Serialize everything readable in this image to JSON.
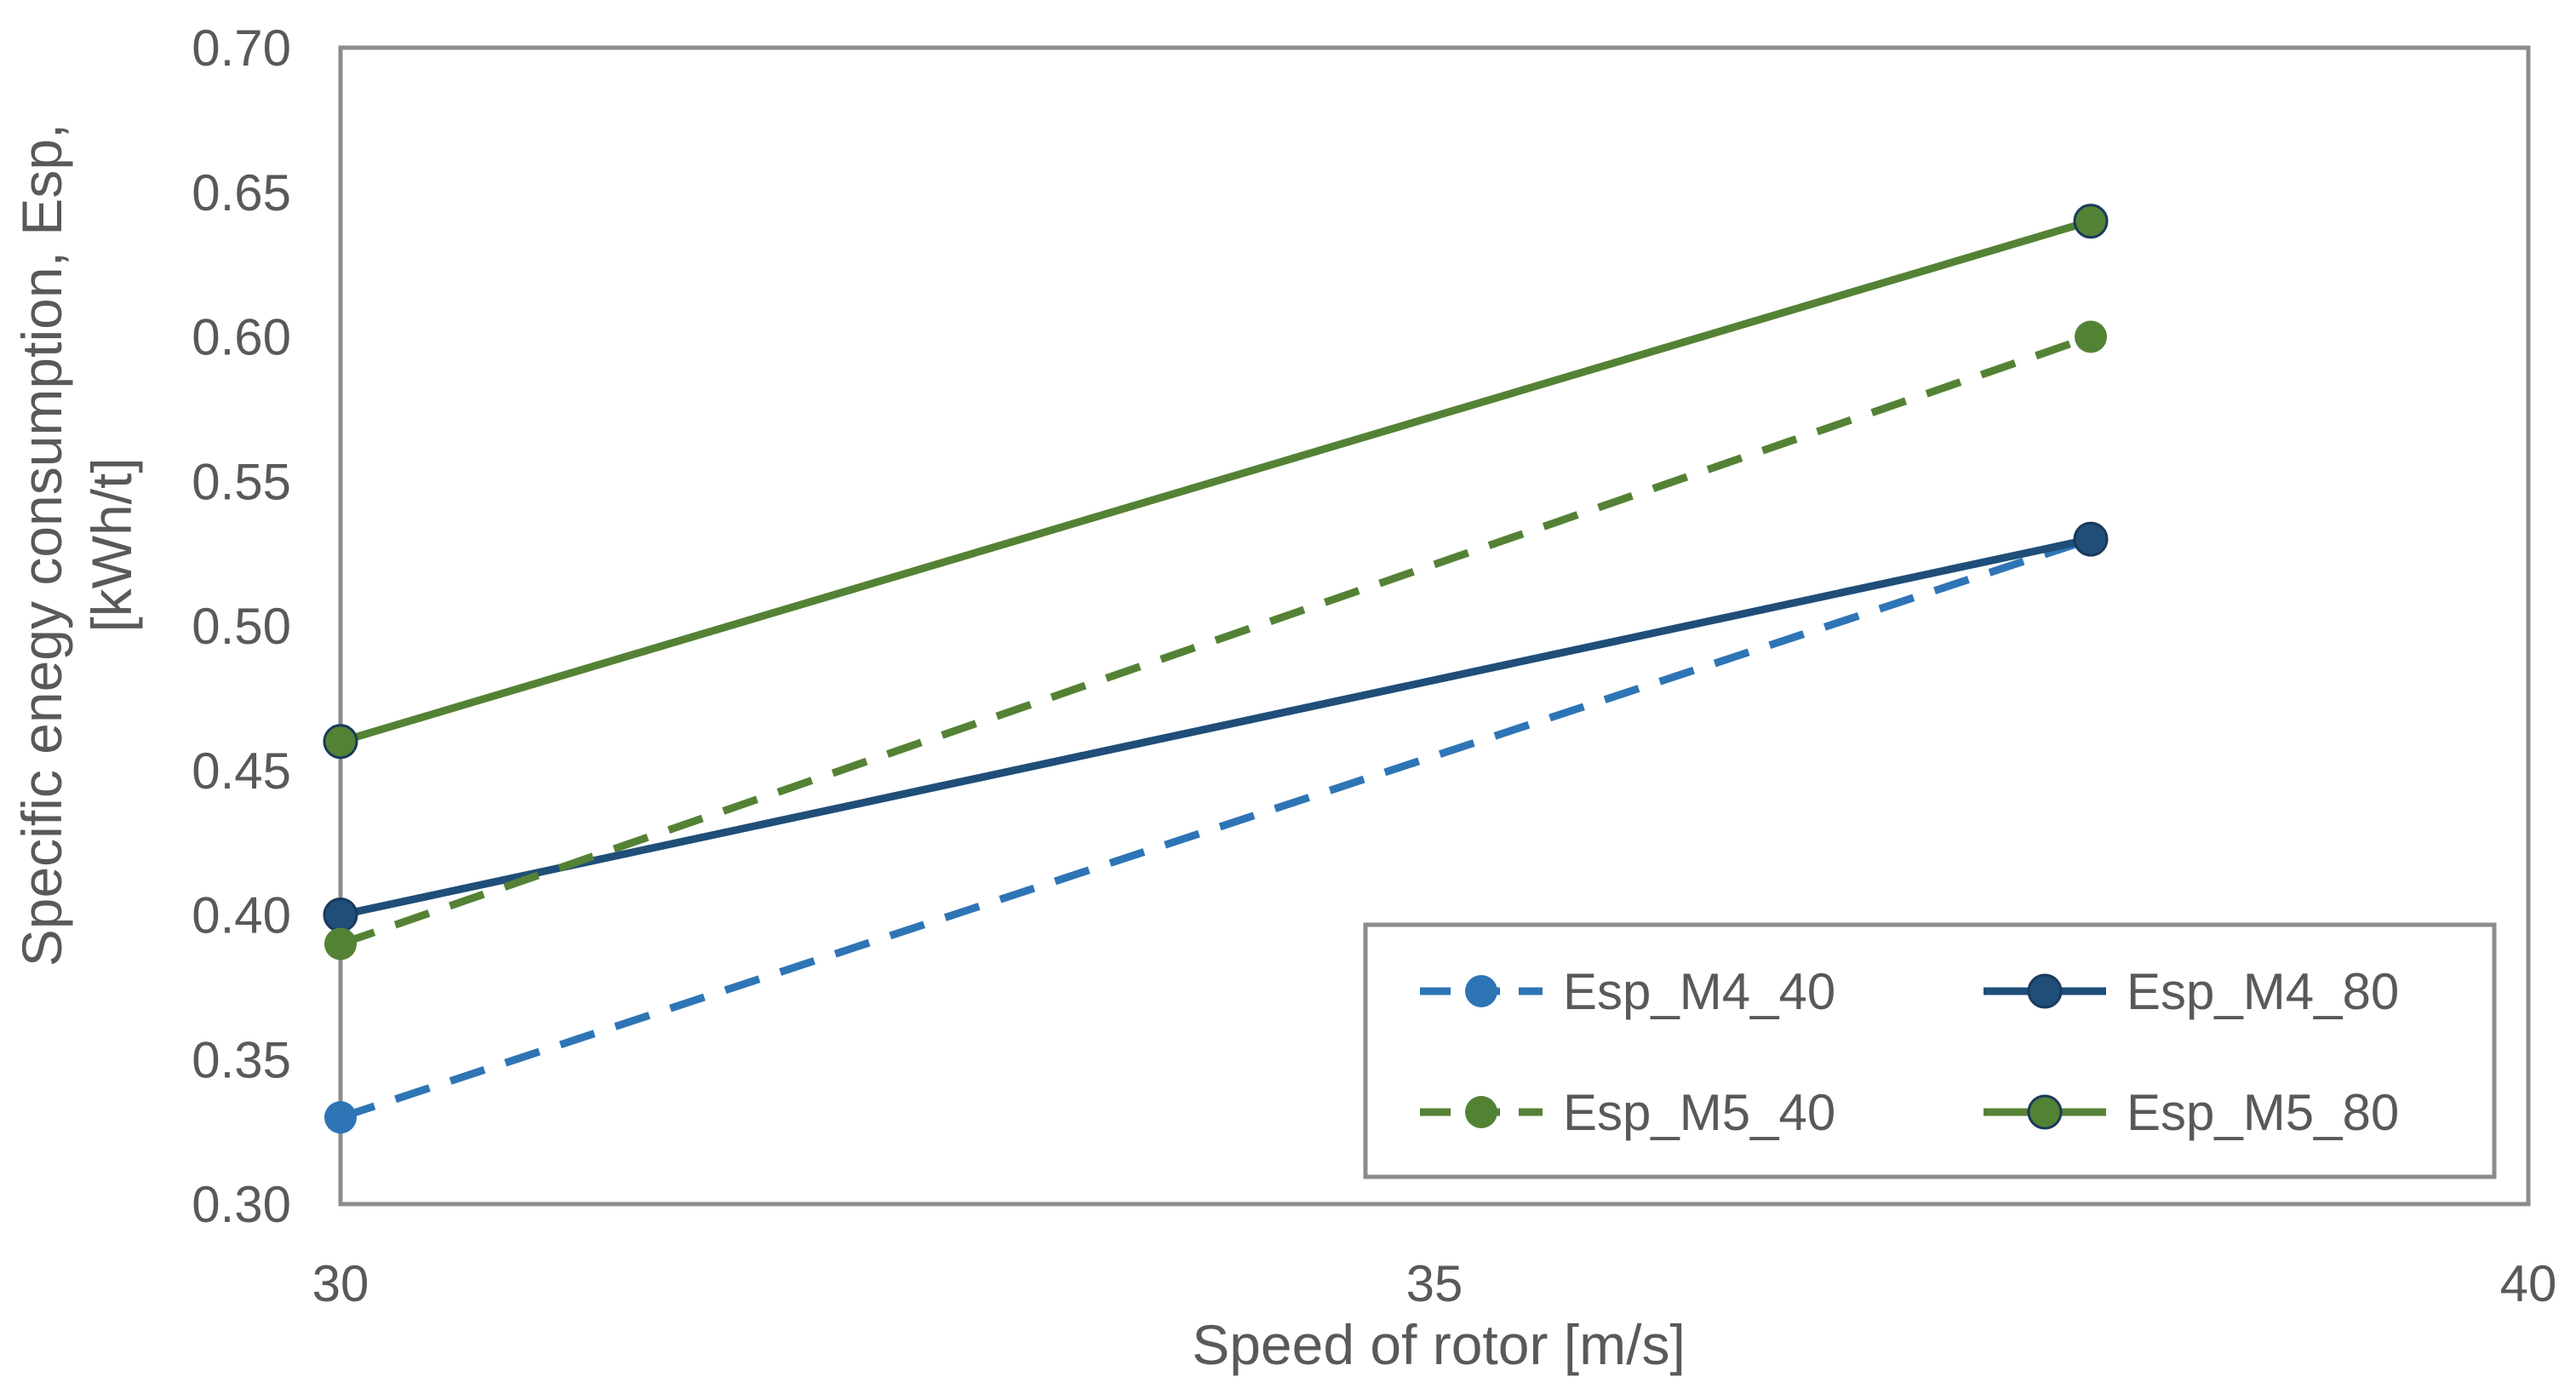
{
  "chart_data": {
    "type": "line",
    "title": "",
    "xlabel": "Speed of rotor [m/s]",
    "ylabel_lines": [
      "Specific enegy consumption, Esp,",
      "[kWh/t]"
    ],
    "xlim": [
      30,
      40
    ],
    "ylim": [
      0.3,
      0.7
    ],
    "x_ticks": [
      30,
      35,
      40
    ],
    "x_tick_labels": [
      "30",
      "35",
      "40"
    ],
    "y_ticks": [
      0.3,
      0.35,
      0.4,
      0.45,
      0.5,
      0.55,
      0.6,
      0.65,
      0.7
    ],
    "y_tick_labels": [
      "0.30",
      "0.35",
      "0.40",
      "0.45",
      "0.50",
      "0.55",
      "0.60",
      "0.65",
      "0.70"
    ],
    "grid": false,
    "legend_position": "bottom-right",
    "series": [
      {
        "name": "Esp_M4_40",
        "color": "#2E75B6",
        "dashed": true,
        "x": [
          30,
          38
        ],
        "values": [
          0.33,
          0.53
        ]
      },
      {
        "name": "Esp_M4_80",
        "color": "#1F4E79",
        "dashed": false,
        "x": [
          30,
          38
        ],
        "values": [
          0.4,
          0.53
        ]
      },
      {
        "name": "Esp_M5_40",
        "color": "#548235",
        "dashed": true,
        "x": [
          30,
          38
        ],
        "values": [
          0.39,
          0.6
        ]
      },
      {
        "name": "Esp_M5_80",
        "color": "#548235",
        "dashed": false,
        "x": [
          30,
          38
        ],
        "values": [
          0.46,
          0.64
        ]
      }
    ]
  }
}
